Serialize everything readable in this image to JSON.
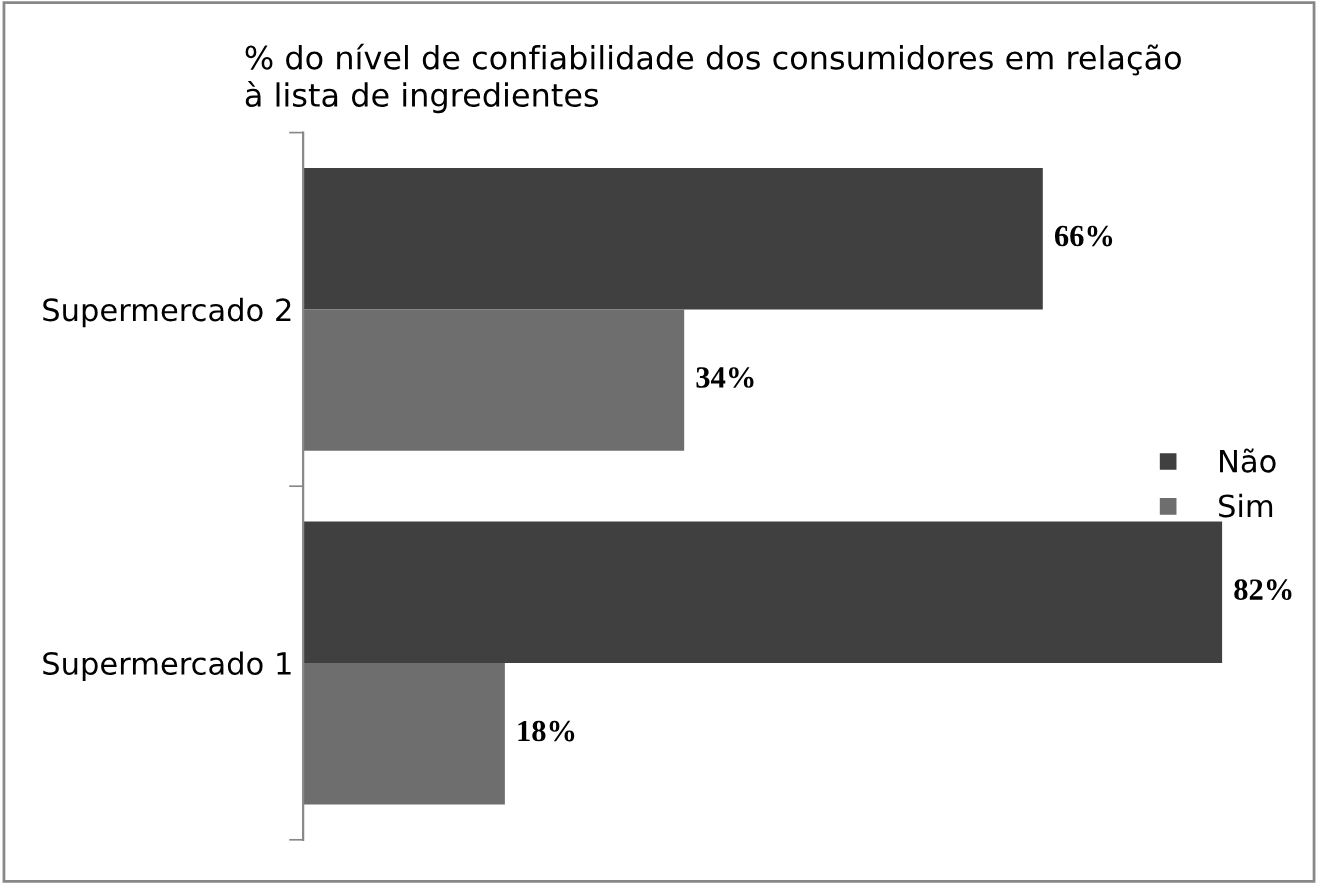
{
  "chart_data": {
    "type": "bar",
    "orientation": "horizontal",
    "title": "% do nível de confiabilidade dos consumidores em relação\nà lista de ingredientes",
    "categories": [
      "Supermercado 2",
      "Supermercado 1"
    ],
    "series": [
      {
        "name": "Não",
        "color": "#404040",
        "values": [
          66,
          82
        ],
        "value_labels": [
          "66%",
          "82%"
        ]
      },
      {
        "name": "Sim",
        "color": "#6e6e6e",
        "values": [
          34,
          18
        ],
        "value_labels": [
          "34%",
          "18%"
        ]
      }
    ],
    "legend": "right",
    "grid": false
  }
}
